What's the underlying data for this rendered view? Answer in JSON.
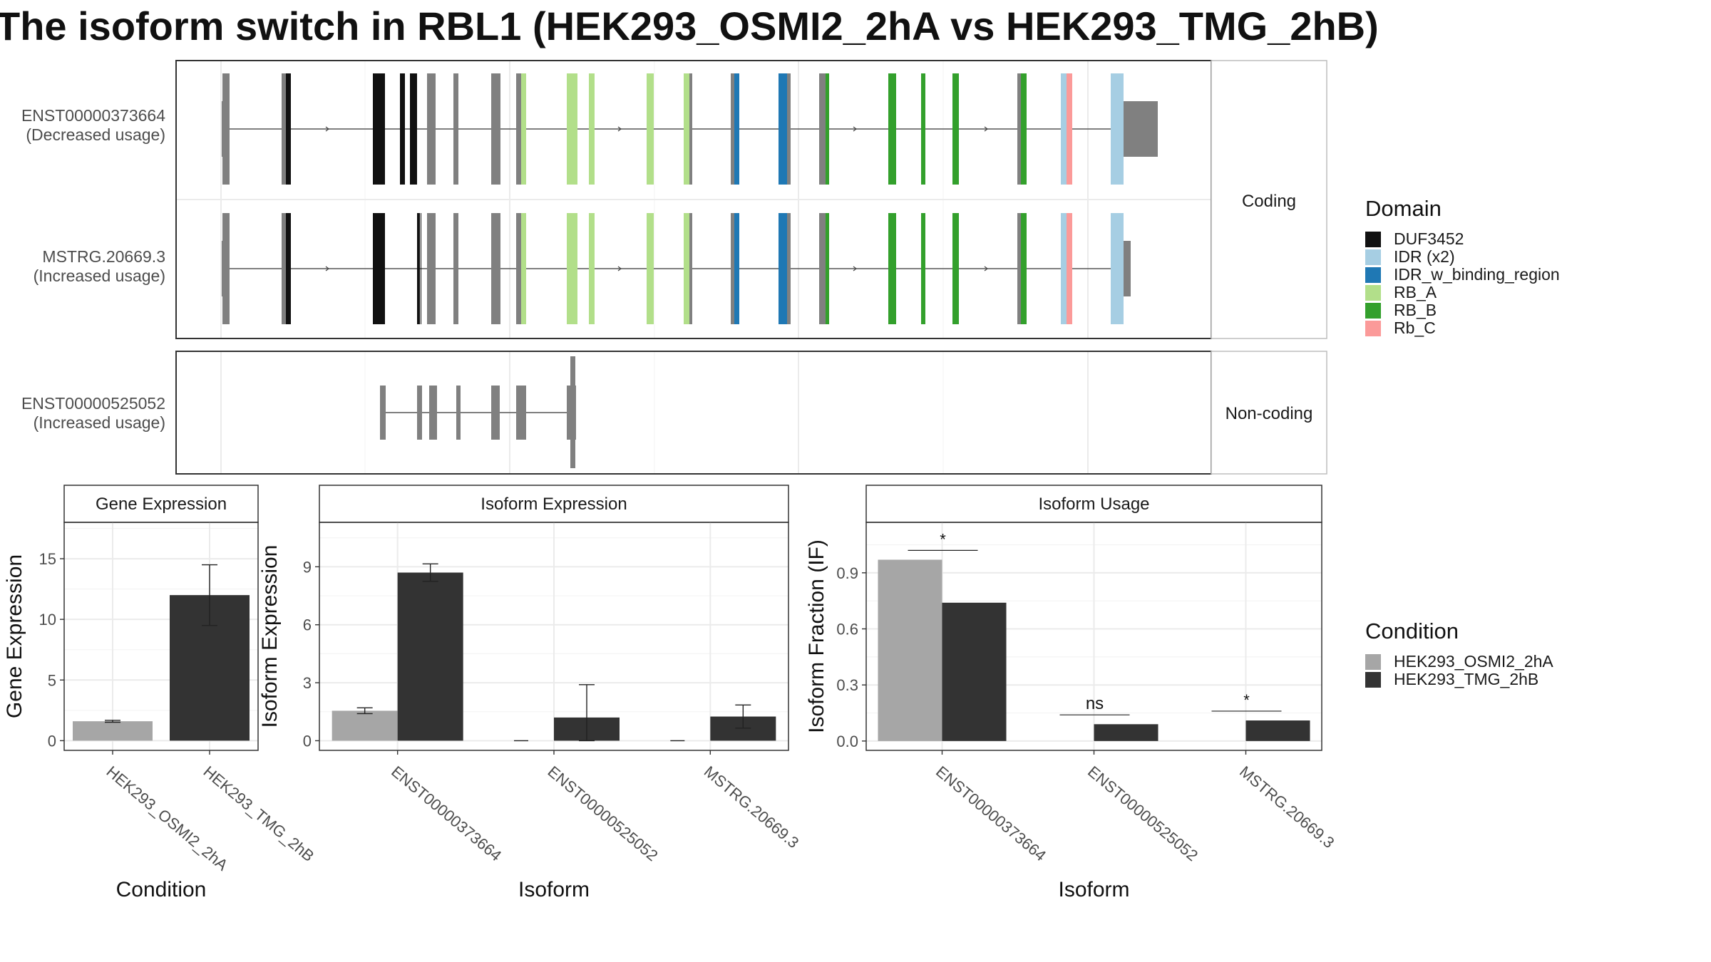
{
  "title": "The isoform switch in RBL1 (HEK293_OSMI2_2hA vs HEK293_TMG_2hB)",
  "colors": {
    "cond1": "#a6a6a6",
    "cond2": "#333333",
    "exon_default": "#808080",
    "DUF3452": "#111111",
    "IDR (x2)": "#a6cee3",
    "IDR_w_binding_region": "#1f78b4",
    "RB_A": "#b2df8a",
    "RB_B": "#33a02c",
    "Rb_C": "#fb9a99"
  },
  "transcripts": {
    "strip_coding": "Coding",
    "strip_noncoding": "Non-coding",
    "coding": [
      {
        "id": "ENST00000373664",
        "note": "(Decreased usage)"
      },
      {
        "id": "MSTRG.20669.3",
        "note": "(Increased usage)"
      }
    ],
    "noncoding": [
      {
        "id": "ENST00000525052",
        "note": "(Increased usage)"
      }
    ]
  },
  "legend_domain": {
    "title": "Domain",
    "items": [
      {
        "label": "DUF3452",
        "color": "#111111"
      },
      {
        "label": "IDR (x2)",
        "color": "#a6cee3"
      },
      {
        "label": "IDR_w_binding_region",
        "color": "#1f78b4"
      },
      {
        "label": "RB_A",
        "color": "#b2df8a"
      },
      {
        "label": "RB_B",
        "color": "#33a02c"
      },
      {
        "label": "Rb_C",
        "color": "#fb9a99"
      }
    ]
  },
  "legend_condition": {
    "title": "Condition",
    "items": [
      {
        "label": "HEK293_OSMI2_2hA",
        "color": "#a6a6a6"
      },
      {
        "label": "HEK293_TMG_2hB",
        "color": "#333333"
      }
    ]
  },
  "chart_data": [
    {
      "type": "bar",
      "title": "Gene Expression",
      "xlabel": "Condition",
      "ylabel": "Gene Expression",
      "categories": [
        "HEK293_OSMI2_2hA",
        "HEK293_TMG_2hB"
      ],
      "values": [
        1.6,
        12.0
      ],
      "errors": [
        0.08,
        2.5
      ],
      "ylim": [
        -0.8,
        18
      ],
      "yticks": [
        0,
        5,
        10,
        15
      ]
    },
    {
      "type": "bar",
      "title": "Isoform Expression",
      "xlabel": "Isoform",
      "ylabel": "Isoform Expression",
      "categories": [
        "ENST00000373664",
        "ENST00000525052",
        "MSTRG.20669.3"
      ],
      "series": [
        {
          "name": "HEK293_OSMI2_2hA",
          "values": [
            1.55,
            0.0,
            0.0
          ],
          "errors": [
            0.15,
            0.0,
            0.0
          ]
        },
        {
          "name": "HEK293_TMG_2hB",
          "values": [
            8.7,
            1.2,
            1.25
          ],
          "errors": [
            0.45,
            1.7,
            0.6
          ]
        }
      ],
      "ylim": [
        -0.5,
        11.3
      ],
      "yticks": [
        0,
        3,
        6,
        9
      ]
    },
    {
      "type": "bar",
      "title": "Isoform Usage",
      "xlabel": "Isoform",
      "ylabel": "Isoform Fraction (IF)",
      "categories": [
        "ENST00000373664",
        "ENST00000525052",
        "MSTRG.20669.3"
      ],
      "series": [
        {
          "name": "HEK293_OSMI2_2hA",
          "values": [
            0.97,
            0.0,
            0.0
          ]
        },
        {
          "name": "HEK293_TMG_2hB",
          "values": [
            0.74,
            0.09,
            0.11
          ]
        }
      ],
      "significance": [
        "*",
        "ns",
        "*"
      ],
      "ylim": [
        -0.05,
        1.17
      ],
      "yticks": [
        0.0,
        0.3,
        0.6,
        0.9
      ]
    }
  ]
}
